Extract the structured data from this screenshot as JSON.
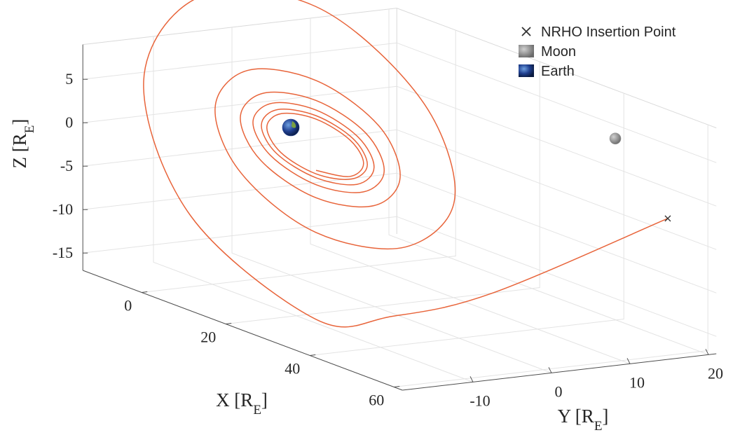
{
  "chart_data": {
    "type": "line3d",
    "xlabel": [
      "X [R",
      "E",
      "]"
    ],
    "ylabel": [
      "Y [R",
      "E",
      "]"
    ],
    "zlabel": [
      "Z [R",
      "E",
      "]"
    ],
    "xlim": [
      -14,
      62
    ],
    "ylim": [
      -19,
      21
    ],
    "zlim": [
      -17,
      9
    ],
    "xticks": [
      0,
      20,
      40,
      60
    ],
    "yticks": [
      -10,
      0,
      10,
      20
    ],
    "zticks": [
      -15,
      -10,
      -5,
      0,
      5
    ],
    "grid": true,
    "legend": "upper right",
    "trajectory": {
      "color": "#e8643a",
      "x": [
        31.6,
        20,
        13,
        6,
        -23.8,
        -35,
        -21.7,
        6,
        30.9,
        39,
        27.3,
        6,
        -11.8,
        -18,
        -10.3,
        6,
        20.9,
        26,
        19.8,
        6,
        -7.1,
        -12,
        -6.4,
        6,
        17.8,
        22.2,
        17.2,
        6,
        -4.8,
        -9,
        -4.4,
        6,
        16,
        19.8,
        15.7,
        6,
        -3.4,
        -7,
        -3.1,
        6,
        14.8,
        18.2,
        14.5,
        6,
        -2.4,
        -5.7,
        -2.2,
        6,
        14.1,
        17.3,
        14,
        6
      ],
      "y": [
        31.1,
        15,
        6,
        0,
        0,
        0,
        0,
        0,
        0,
        0,
        0,
        0,
        0,
        0,
        0,
        0,
        0,
        0,
        0,
        0,
        0,
        0,
        0,
        0,
        0,
        0,
        0,
        0,
        0,
        0,
        0,
        0,
        0,
        0,
        0,
        0,
        0,
        0,
        0,
        0,
        0,
        0,
        0,
        0,
        0,
        0,
        0,
        0,
        0,
        0,
        0,
        0
      ],
      "z": [
        -8,
        -17,
        -20,
        -21,
        -14.5,
        -1,
        11.1,
        15,
        8.9,
        -1,
        -8.8,
        -11,
        -7.4,
        -1,
        4.7,
        6.5,
        4,
        -1,
        -5.4,
        -7,
        -5.1,
        -1,
        2.8,
        4.2,
        2.6,
        -1,
        -4.3,
        -5.5,
        -4.1,
        -1,
        2,
        3.1,
        1.8,
        -1,
        -3.7,
        -4.7,
        -3.6,
        -1,
        1.5,
        2.45,
        1.4,
        -1,
        -3.3,
        -4.25,
        -3.3,
        -1,
        1.2,
        2.05,
        1.1,
        -1,
        -3.1,
        -3.85
      ]
    },
    "points": [
      {
        "name": "NRHO Insertion Point",
        "marker": "x",
        "color": "#333333",
        "x": 31.6,
        "y": 31.1,
        "z": -8
      },
      {
        "name": "Moon",
        "marker": "sphere",
        "color": "#9a9a9a",
        "x": 23.6,
        "y": 28.7,
        "z": 0
      },
      {
        "name": "Earth",
        "marker": "sphere",
        "color": "#1f3f8f",
        "x": 0,
        "y": 0,
        "z": 0
      }
    ]
  }
}
